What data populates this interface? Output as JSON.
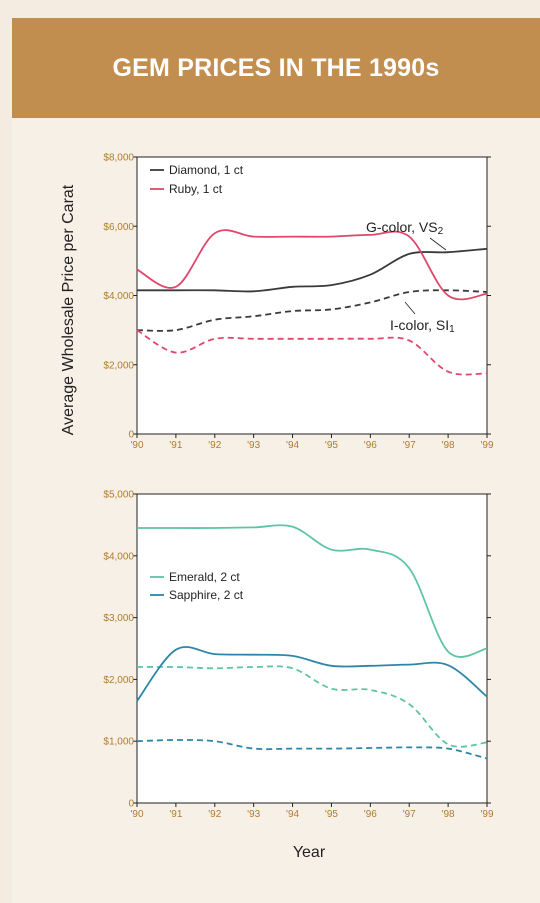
{
  "header": {
    "title": "GEM PRICES IN THE 1990s"
  },
  "colors": {
    "banner": "#c28e50",
    "background": "#f4ece0",
    "tick_label": "#b07c2c",
    "diamond": "#3a3a3a",
    "ruby": "#e0476a",
    "emerald": "#5ec4a6",
    "sapphire": "#2d86a8"
  },
  "shared": {
    "ylabel": "Average Wholesale Price per Carat",
    "xlabel": "Year"
  },
  "chart_data": [
    {
      "type": "line",
      "xlabel": "",
      "ylabel": "Average Wholesale Price per Carat",
      "xlim": [
        1990,
        1999
      ],
      "ylim": [
        0,
        8000
      ],
      "x_tick_labels": [
        "'90",
        "'91",
        "'92",
        "'93",
        "'94",
        "'95",
        "'96",
        "'97",
        "'98",
        "'99"
      ],
      "y_tick_labels": [
        "0",
        "$2,000",
        "$4,000",
        "$6,000",
        "$8,000"
      ],
      "y_tick_values": [
        0,
        2000,
        4000,
        6000,
        8000
      ],
      "grid": false,
      "legend": [
        {
          "name": "Diamond, 1 ct",
          "color": "#3a3a3a"
        },
        {
          "name": "Ruby, 1 ct",
          "color": "#e0476a"
        }
      ],
      "annotations": [
        {
          "text": "G-color, VS",
          "sub": "2"
        },
        {
          "text": "I-color, SI",
          "sub": "1"
        }
      ],
      "series": [
        {
          "name": "Diamond, 1 ct",
          "style": "solid",
          "color": "#3a3a3a",
          "x": [
            1990,
            1991,
            1992,
            1993,
            1994,
            1995,
            1996,
            1997,
            1998,
            1999
          ],
          "values": [
            4150,
            4150,
            4150,
            4120,
            4250,
            4300,
            4600,
            5200,
            5250,
            5350
          ]
        },
        {
          "style": "dashed",
          "color": "#3a3a3a",
          "x": [
            1990,
            1991,
            1992,
            1993,
            1994,
            1995,
            1996,
            1997,
            1998,
            1999
          ],
          "values": [
            3000,
            3000,
            3300,
            3400,
            3550,
            3600,
            3800,
            4100,
            4150,
            4100
          ]
        },
        {
          "name": "Ruby, 1 ct",
          "style": "solid",
          "color": "#e0476a",
          "x": [
            1990,
            1991,
            1992,
            1993,
            1994,
            1995,
            1996,
            1997,
            1998,
            1999
          ],
          "values": [
            4750,
            4250,
            5800,
            5700,
            5700,
            5700,
            5750,
            5700,
            4000,
            4050
          ]
        },
        {
          "style": "dashed",
          "color": "#e0476a",
          "x": [
            1990,
            1991,
            1992,
            1993,
            1994,
            1995,
            1996,
            1997,
            1998,
            1999
          ],
          "values": [
            3000,
            2350,
            2750,
            2750,
            2750,
            2750,
            2750,
            2700,
            1800,
            1750
          ]
        }
      ]
    },
    {
      "type": "line",
      "xlabel": "Year",
      "ylabel": "Average Wholesale Price per Carat",
      "xlim": [
        1990,
        1999
      ],
      "ylim": [
        0,
        5000
      ],
      "x_tick_labels": [
        "'90",
        "'91",
        "'92",
        "'93",
        "'94",
        "'95",
        "'96",
        "'97",
        "'98",
        "'99"
      ],
      "y_tick_labels": [
        "0",
        "$1,000",
        "$2,000",
        "$3,000",
        "$4,000",
        "$5,000"
      ],
      "y_tick_values": [
        0,
        1000,
        2000,
        3000,
        4000,
        5000
      ],
      "grid": false,
      "legend": [
        {
          "name": "Emerald, 2 ct",
          "color": "#5ec4a6"
        },
        {
          "name": "Sapphire, 2 ct",
          "color": "#2d86a8"
        }
      ],
      "series": [
        {
          "name": "Emerald, 2 ct",
          "style": "solid",
          "color": "#5ec4a6",
          "x": [
            1990,
            1991,
            1992,
            1993,
            1994,
            1995,
            1996,
            1997,
            1998,
            1999
          ],
          "values": [
            4450,
            4450,
            4450,
            4460,
            4470,
            4100,
            4100,
            3800,
            2450,
            2500
          ]
        },
        {
          "style": "dashed",
          "color": "#5ec4a6",
          "x": [
            1990,
            1991,
            1992,
            1993,
            1994,
            1995,
            1996,
            1997,
            1998,
            1999
          ],
          "values": [
            2200,
            2200,
            2180,
            2200,
            2180,
            1850,
            1830,
            1600,
            950,
            980
          ]
        },
        {
          "name": "Sapphire, 2 ct",
          "style": "solid",
          "color": "#2d86a8",
          "x": [
            1990,
            1991,
            1992,
            1993,
            1994,
            1995,
            1996,
            1997,
            1998,
            1999
          ],
          "values": [
            1650,
            2480,
            2410,
            2400,
            2380,
            2220,
            2220,
            2240,
            2230,
            1720
          ]
        },
        {
          "style": "dashed",
          "color": "#2d86a8",
          "x": [
            1990,
            1991,
            1992,
            1993,
            1994,
            1995,
            1996,
            1997,
            1998,
            1999
          ],
          "values": [
            1000,
            1020,
            1000,
            880,
            880,
            880,
            890,
            900,
            880,
            720
          ]
        }
      ]
    }
  ]
}
